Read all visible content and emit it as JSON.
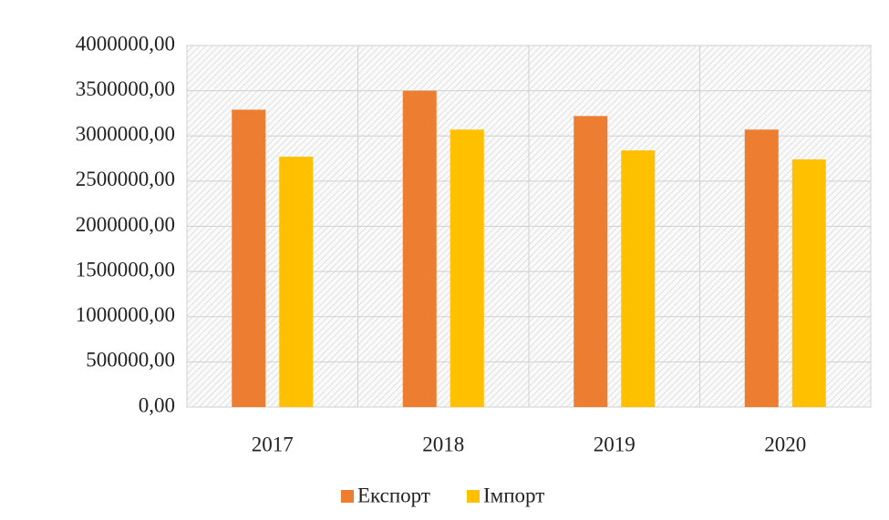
{
  "chart_data": {
    "type": "bar",
    "categories": [
      "2017",
      "2018",
      "2019",
      "2020"
    ],
    "series": [
      {
        "name": "Експорт",
        "color": "#ED7D31",
        "values": [
          3290000,
          3500000,
          3220000,
          3070000
        ]
      },
      {
        "name": "Імпорт",
        "color": "#FFC000",
        "values": [
          2770000,
          3070000,
          2840000,
          2740000
        ]
      }
    ],
    "ylim": [
      0,
      4000000
    ],
    "yticks": [
      {
        "value": 0,
        "label": "0,00"
      },
      {
        "value": 500000,
        "label": "500000,00"
      },
      {
        "value": 1000000,
        "label": "1000000,00"
      },
      {
        "value": 1500000,
        "label": "1500000,00"
      },
      {
        "value": 2000000,
        "label": "2000000,00"
      },
      {
        "value": 2500000,
        "label": "2500000,00"
      },
      {
        "value": 3000000,
        "label": "3000000,00"
      },
      {
        "value": 3500000,
        "label": "3500000,00"
      },
      {
        "value": 4000000,
        "label": "4000000,00"
      }
    ],
    "grid": true,
    "legend": "bottom"
  }
}
